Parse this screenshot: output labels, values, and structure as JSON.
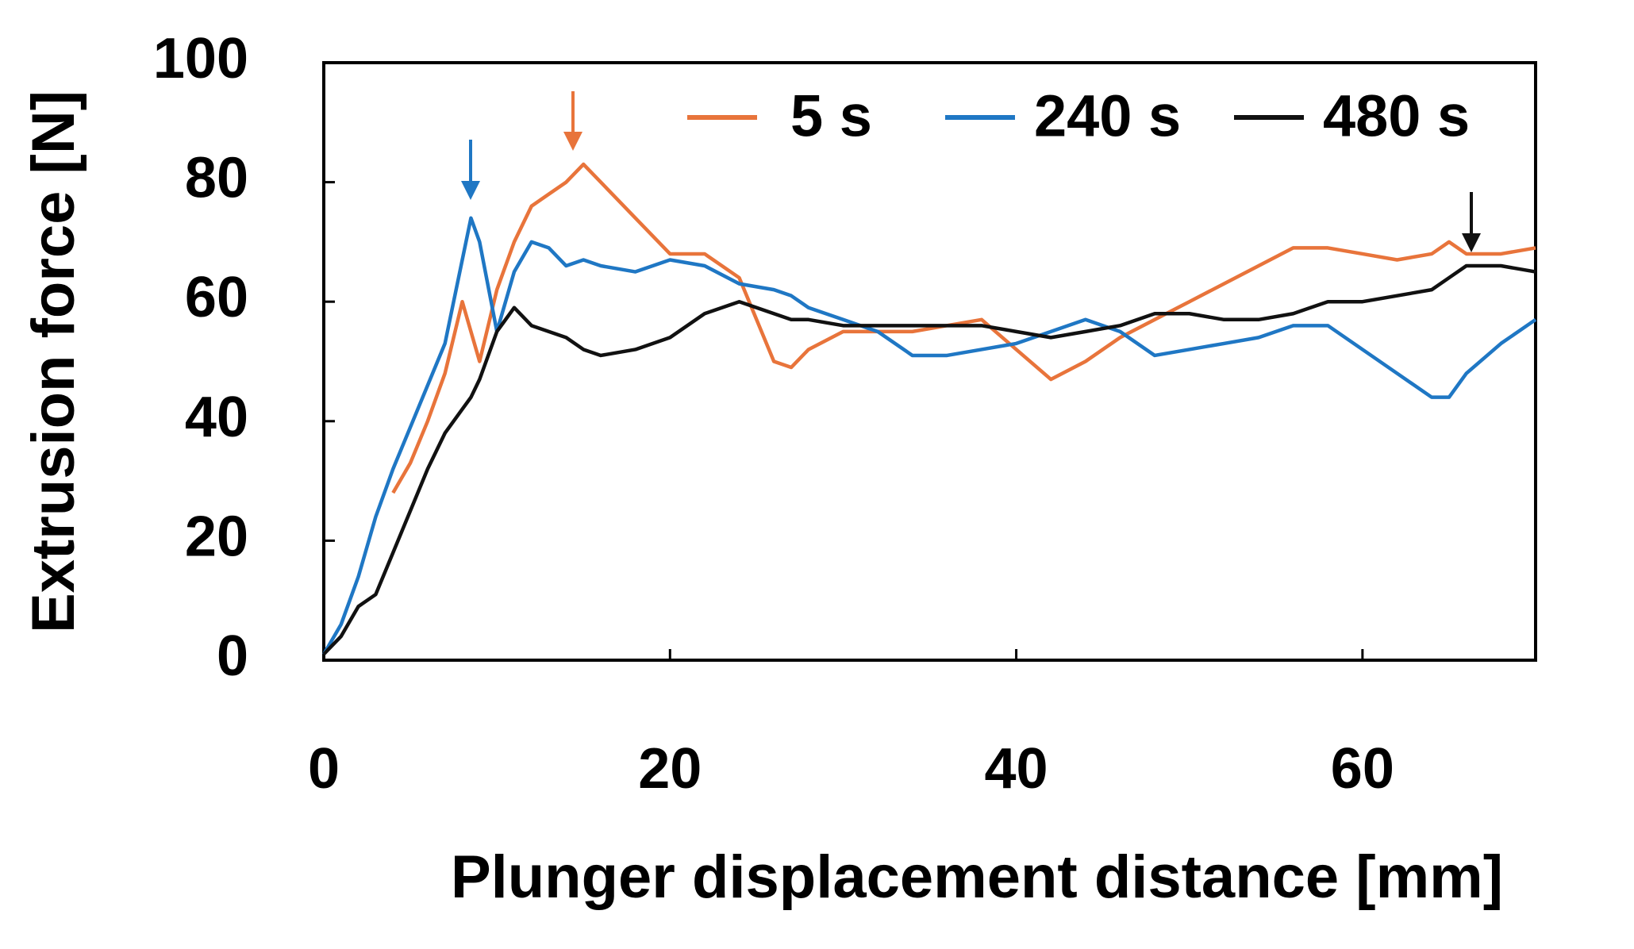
{
  "chart_data": {
    "type": "line",
    "xlabel": "Plunger displacement  distance [mm]",
    "ylabel": "Extrusion force [N]",
    "xlim": [
      0,
      70
    ],
    "ylim": [
      0,
      100
    ],
    "xticks": [
      0,
      20,
      40,
      60
    ],
    "yticks": [
      0,
      20,
      40,
      60,
      80,
      100
    ],
    "legend": "upper right",
    "x": [
      0,
      1,
      2,
      3,
      4,
      5,
      6,
      7,
      8,
      8.5,
      9,
      10,
      11,
      12,
      13,
      14,
      15,
      16,
      18,
      20,
      22,
      24,
      26,
      27,
      28,
      30,
      32,
      34,
      36,
      38,
      40,
      42,
      44,
      46,
      48,
      50,
      52,
      54,
      56,
      58,
      60,
      62,
      64,
      65,
      66,
      68,
      70
    ],
    "series": [
      {
        "name": "5 s",
        "color": "#e8743b",
        "values": [
          null,
          null,
          null,
          null,
          28,
          33,
          40,
          48,
          60,
          55,
          50,
          62,
          70,
          76,
          78,
          80,
          83,
          80,
          74,
          68,
          68,
          64,
          50,
          49,
          52,
          55,
          55,
          55,
          56,
          57,
          52,
          47,
          50,
          54,
          57,
          60,
          63,
          66,
          69,
          69,
          68,
          67,
          68,
          70,
          68,
          68,
          69
        ]
      },
      {
        "name": "240 s",
        "color": "#1f77c4",
        "values": [
          1,
          6,
          14,
          24,
          32,
          39,
          46,
          53,
          67,
          74,
          70,
          55,
          65,
          70,
          69,
          66,
          67,
          66,
          65,
          67,
          66,
          63,
          62,
          61,
          59,
          57,
          55,
          51,
          51,
          52,
          53,
          55,
          57,
          55,
          51,
          52,
          53,
          54,
          56,
          56,
          52,
          48,
          44,
          44,
          48,
          53,
          57
        ]
      },
      {
        "name": "480 s",
        "color": "#111111",
        "values": [
          1,
          4,
          9,
          11,
          18,
          25,
          32,
          38,
          42,
          44,
          47,
          55,
          59,
          56,
          55,
          54,
          52,
          51,
          52,
          54,
          58,
          60,
          58,
          57,
          57,
          56,
          56,
          56,
          56,
          56,
          55,
          54,
          55,
          56,
          58,
          58,
          57,
          57,
          58,
          60,
          60,
          61,
          62,
          64,
          66,
          66,
          65
        ]
      }
    ]
  }
}
